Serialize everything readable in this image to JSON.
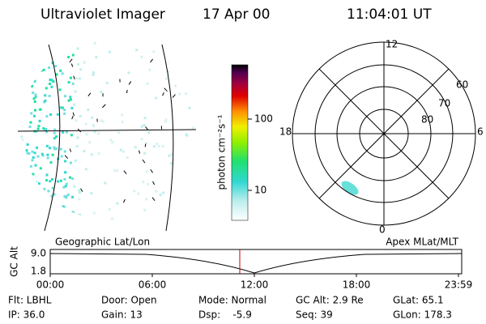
{
  "header": {
    "title": "Ultraviolet Imager",
    "date": "17 Apr 00",
    "time": "11:04:01 UT"
  },
  "colorbar": {
    "label": "photon cm⁻²s⁻¹",
    "ticks": [
      "100",
      "10"
    ]
  },
  "polar": {
    "mlt_labels": [
      "12",
      "18",
      "6",
      "0"
    ],
    "lat_labels": [
      "60",
      "70",
      "80"
    ]
  },
  "panel_labels": {
    "left": "Geographic Lat/Lon",
    "right": "Apex MLat/MLT"
  },
  "orbit_plot": {
    "ylabel": "GC Alt",
    "yticks": [
      "9.0",
      "1.8"
    ],
    "xticks": [
      "00:00",
      "06:00",
      "12:00",
      "18:00",
      "23:59"
    ]
  },
  "footer": {
    "rows": [
      [
        "Flt: LBHL",
        "Door: Open",
        "Mode: Normal",
        "GC Alt: 2.9 Re",
        "GLat: 65.1"
      ],
      [
        "IP: 36.0",
        "Gain: 13",
        "Dsp:    -5.9",
        "Seq: 39",
        "GLon: 178.3"
      ]
    ]
  }
}
